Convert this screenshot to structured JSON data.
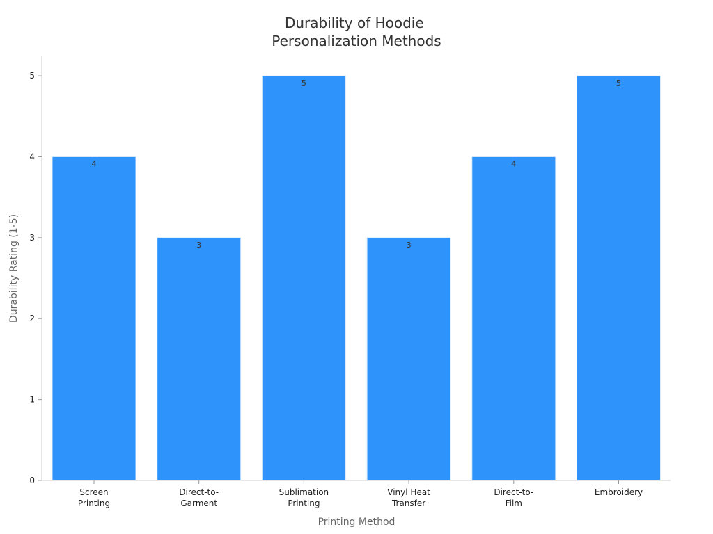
{
  "chart_data": {
    "type": "bar",
    "title": [
      "Durability of Hoodie",
      "Personalization Methods"
    ],
    "xlabel": "Printing Method",
    "ylabel": "Durability Rating (1-5)",
    "categories": [
      [
        "Screen",
        "Printing"
      ],
      [
        "Direct-to-",
        "Garment"
      ],
      [
        "Sublimation",
        "Printing"
      ],
      [
        "Vinyl Heat",
        "Transfer"
      ],
      [
        "Direct-to-",
        "Film"
      ],
      [
        "Embroidery"
      ]
    ],
    "values": [
      4,
      3,
      5,
      3,
      4,
      5
    ],
    "ylim": [
      0,
      5.25
    ],
    "yticks": [
      0,
      1,
      2,
      3,
      4,
      5
    ],
    "grid": false,
    "legend": "none",
    "colors": {
      "bar": "#2e93fa",
      "bar_edge": "#d8e9fb"
    }
  }
}
